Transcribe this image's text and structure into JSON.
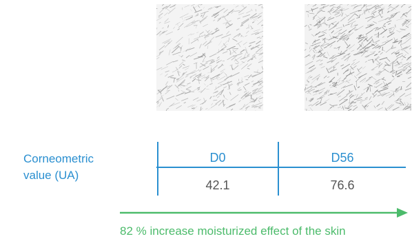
{
  "images": {
    "d0_alt": "skin micro-relief D0",
    "d56_alt": "skin micro-relief D56"
  },
  "table": {
    "row_label_line1": "Corneometric",
    "row_label_line2": "value (UA)",
    "columns": [
      "D0",
      "D56"
    ],
    "values": [
      "42.1",
      "76.6"
    ]
  },
  "caption": "82 % increase moisturized effect of the skin",
  "colors": {
    "blue": "#2a8fd0",
    "green": "#4cbb6b",
    "value_text": "#555555"
  }
}
